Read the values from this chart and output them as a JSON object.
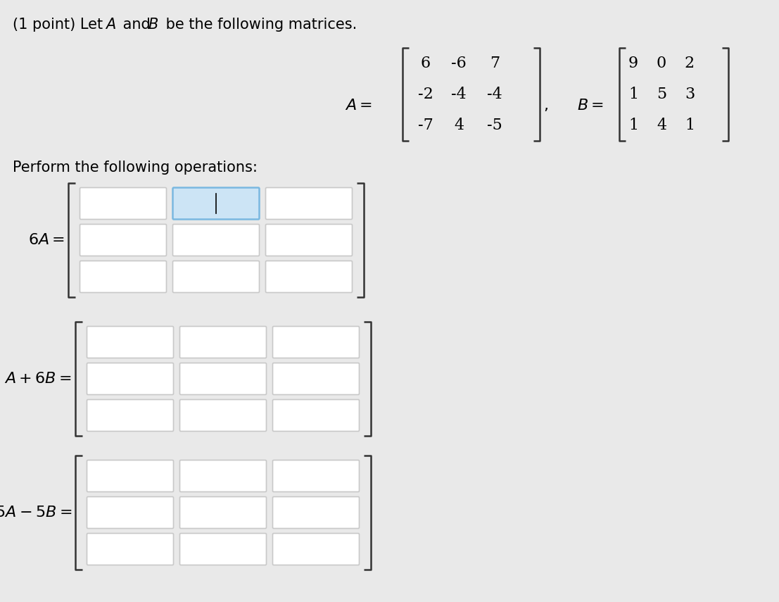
{
  "background_color": "#e9e9e9",
  "matrix_A": [
    [
      6,
      -6,
      7
    ],
    [
      -2,
      -4,
      -4
    ],
    [
      -7,
      4,
      -5
    ]
  ],
  "matrix_B": [
    [
      9,
      0,
      2
    ],
    [
      1,
      5,
      3
    ],
    [
      1,
      4,
      1
    ]
  ],
  "box_fill_white": "#ffffff",
  "box_fill_highlight": "#cce4f5",
  "box_outline": "#c8c8c8",
  "box_outline_highlight": "#7ab8e0",
  "box_fill_gray": "#e0e0e0",
  "font_size_title": 15,
  "font_size_matrix": 16,
  "font_size_label": 16
}
